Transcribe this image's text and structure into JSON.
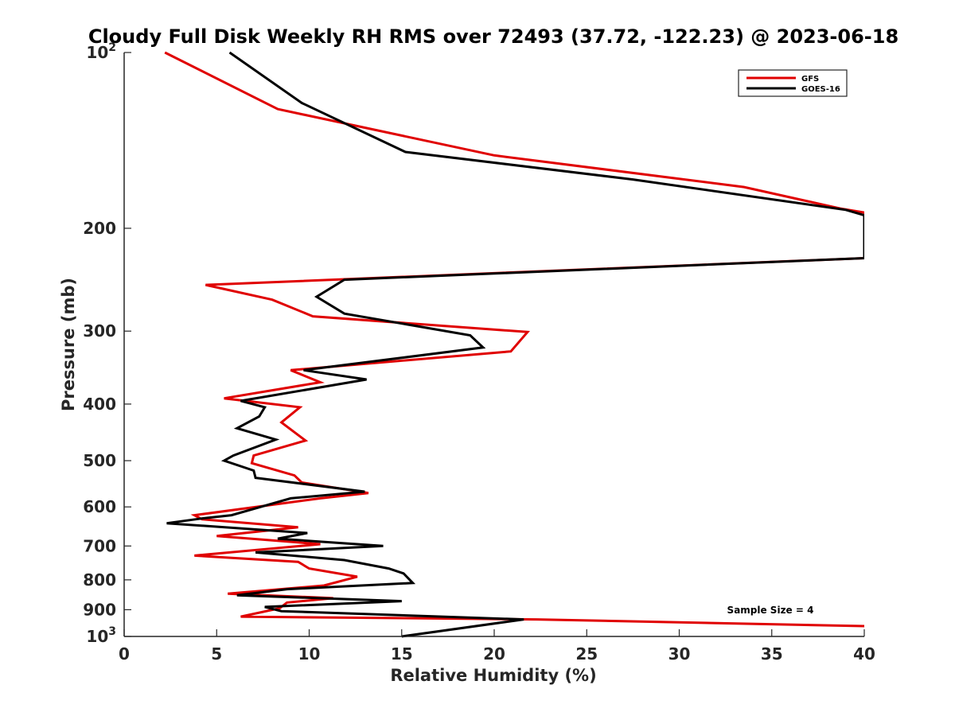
{
  "chart_data": {
    "type": "line",
    "title": "Cloudy Full Disk Weekly RH RMS over 72493 (37.72, -122.23) @ 2023-06-18",
    "xlabel": "Relative Humidity (%)",
    "ylabel": "Pressure (mb)",
    "xlim": [
      0,
      40
    ],
    "ylim": [
      100,
      1000
    ],
    "y_scale": "log",
    "y_reversed": true,
    "x_ticks": [
      0,
      5,
      10,
      15,
      20,
      25,
      30,
      35,
      40
    ],
    "y_ticks": [
      {
        "value": 100,
        "label": "10",
        "sup": "2"
      },
      {
        "value": 200,
        "label": "200"
      },
      {
        "value": 300,
        "label": "300"
      },
      {
        "value": 400,
        "label": "400"
      },
      {
        "value": 500,
        "label": "500"
      },
      {
        "value": 600,
        "label": "600"
      },
      {
        "value": 700,
        "label": "700"
      },
      {
        "value": 800,
        "label": "800"
      },
      {
        "value": 900,
        "label": "900"
      },
      {
        "value": 1000,
        "label": "10",
        "sup": "3"
      }
    ],
    "legend_position": "top-right",
    "annotation": "Sample Size = 4",
    "series": [
      {
        "name": "GFS",
        "color": "#e00000",
        "points": [
          [
            2.2,
            100
          ],
          [
            8.3,
            125
          ],
          [
            20.0,
            150
          ],
          [
            33.5,
            170
          ],
          [
            38.7,
            185
          ],
          [
            40.0,
            188
          ],
          [
            40.0,
            225
          ],
          [
            4.4,
            250
          ],
          [
            8.0,
            265
          ],
          [
            10.2,
            283
          ],
          [
            21.8,
            301
          ],
          [
            20.9,
            325
          ],
          [
            9.0,
            350
          ],
          [
            10.6,
            367
          ],
          [
            5.4,
            391
          ],
          [
            9.5,
            405
          ],
          [
            8.5,
            430
          ],
          [
            9.8,
            462
          ],
          [
            7.0,
            490
          ],
          [
            6.9,
            505
          ],
          [
            9.2,
            530
          ],
          [
            9.6,
            545
          ],
          [
            13.2,
            568
          ],
          [
            10.6,
            580
          ],
          [
            3.8,
            620
          ],
          [
            4.2,
            630
          ],
          [
            9.4,
            650
          ],
          [
            5.0,
            673
          ],
          [
            10.6,
            695
          ],
          [
            3.8,
            727
          ],
          [
            9.4,
            745
          ],
          [
            10.0,
            765
          ],
          [
            12.6,
            790
          ],
          [
            10.8,
            818
          ],
          [
            5.6,
            845
          ],
          [
            11.3,
            860
          ],
          [
            8.8,
            875
          ],
          [
            8.4,
            895
          ],
          [
            6.3,
            925
          ],
          [
            22.3,
            935
          ],
          [
            40.0,
            960
          ]
        ]
      },
      {
        "name": "GOES-16",
        "color": "#000000",
        "points": [
          [
            5.7,
            100
          ],
          [
            9.6,
            122
          ],
          [
            15.2,
            148
          ],
          [
            27.5,
            165
          ],
          [
            39.0,
            186
          ],
          [
            40.0,
            190
          ],
          [
            40.0,
            225
          ],
          [
            11.9,
            245
          ],
          [
            10.4,
            262
          ],
          [
            11.9,
            280
          ],
          [
            18.7,
            305
          ],
          [
            19.4,
            320
          ],
          [
            9.7,
            350
          ],
          [
            13.1,
            363
          ],
          [
            6.3,
            395
          ],
          [
            7.6,
            405
          ],
          [
            7.3,
            420
          ],
          [
            6.1,
            440
          ],
          [
            8.2,
            460
          ],
          [
            5.9,
            490
          ],
          [
            5.4,
            500
          ],
          [
            7.0,
            520
          ],
          [
            7.1,
            535
          ],
          [
            13.0,
            565
          ],
          [
            9.0,
            580
          ],
          [
            5.8,
            620
          ],
          [
            4.2,
            628
          ],
          [
            2.3,
            640
          ],
          [
            9.9,
            665
          ],
          [
            8.3,
            680
          ],
          [
            14.0,
            700
          ],
          [
            7.1,
            718
          ],
          [
            11.9,
            740
          ],
          [
            14.3,
            765
          ],
          [
            15.1,
            780
          ],
          [
            15.6,
            810
          ],
          [
            8.8,
            830
          ],
          [
            6.1,
            850
          ],
          [
            15.0,
            870
          ],
          [
            7.6,
            890
          ],
          [
            8.5,
            905
          ],
          [
            21.6,
            935
          ],
          [
            15.0,
            1000
          ]
        ]
      }
    ]
  }
}
